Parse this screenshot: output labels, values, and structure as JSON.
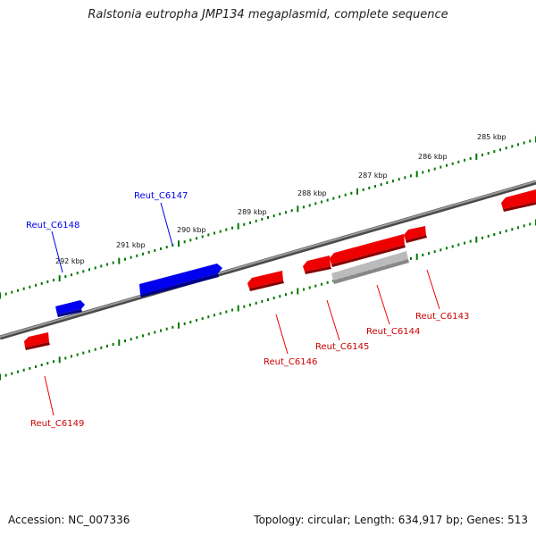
{
  "title": "Ralstonia eutropha JMP134 megaplasmid, complete sequence",
  "footer": {
    "accession": "Accession: NC_007336",
    "summary": "Topology: circular; Length: 634,917 bp; Genes: 513"
  },
  "colors": {
    "forward": "#0000ee",
    "reverse": "#ee0000",
    "other": "#bbbbbb",
    "backbone": "#777777",
    "ticks": "#007700"
  },
  "scale_labels": [
    "285 kbp",
    "286 kbp",
    "287 kbp",
    "288 kbp",
    "289 kbp",
    "290 kbp",
    "291 kbp",
    "292 kbp"
  ],
  "genes": [
    {
      "name": "Reut_C6147",
      "strand": "forward"
    },
    {
      "name": "Reut_C6148",
      "strand": "forward"
    },
    {
      "name": "Reut_C6149",
      "strand": "reverse"
    },
    {
      "name": "Reut_C6146",
      "strand": "reverse"
    },
    {
      "name": "Reut_C6145",
      "strand": "reverse"
    },
    {
      "name": "Reut_C6144",
      "strand": "reverse"
    },
    {
      "name": "Reut_C6143",
      "strand": "reverse"
    }
  ]
}
